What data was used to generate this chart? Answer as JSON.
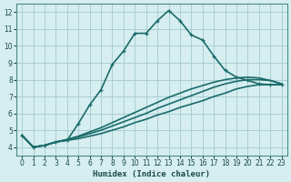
{
  "xlabel": "Humidex (Indice chaleur)",
  "ylabel": "",
  "xlim": [
    -0.5,
    23.5
  ],
  "ylim": [
    3.5,
    12.5
  ],
  "xticks": [
    0,
    1,
    2,
    3,
    4,
    5,
    6,
    7,
    8,
    9,
    10,
    11,
    12,
    13,
    14,
    15,
    16,
    17,
    18,
    19,
    20,
    21,
    22,
    23
  ],
  "yticks": [
    4,
    5,
    6,
    7,
    8,
    9,
    10,
    11,
    12
  ],
  "background_color": "#d6eef0",
  "grid_color": "#aacfd2",
  "line_color": "#1a6b6b",
  "lines": [
    {
      "x": [
        0,
        1,
        2,
        3,
        4,
        5,
        6,
        7,
        8,
        9,
        10,
        11,
        12,
        13,
        14,
        15,
        16,
        17,
        18,
        19,
        20,
        21,
        22,
        23
      ],
      "y": [
        4.7,
        4.0,
        4.1,
        4.3,
        4.4,
        5.4,
        6.5,
        7.4,
        8.9,
        9.7,
        10.75,
        10.75,
        11.5,
        12.1,
        11.5,
        10.65,
        10.35,
        9.4,
        8.55,
        8.15,
        7.95,
        7.75,
        7.7,
        7.7
      ],
      "marker": "+",
      "lw": 1.2
    },
    {
      "x": [
        0,
        1,
        2,
        3,
        4,
        5,
        6,
        7,
        8,
        9,
        10,
        11,
        12,
        13,
        14,
        15,
        16,
        17,
        18,
        19,
        20,
        21,
        22,
        23
      ],
      "y": [
        4.7,
        4.0,
        4.1,
        4.3,
        4.4,
        4.5,
        4.65,
        4.8,
        5.0,
        5.2,
        5.45,
        5.65,
        5.9,
        6.1,
        6.35,
        6.55,
        6.75,
        7.0,
        7.2,
        7.45,
        7.6,
        7.7,
        7.7,
        7.7
      ],
      "marker": null,
      "lw": 1.2
    },
    {
      "x": [
        0,
        1,
        2,
        3,
        4,
        5,
        6,
        7,
        8,
        9,
        10,
        11,
        12,
        13,
        14,
        15,
        16,
        17,
        18,
        19,
        20,
        21,
        22,
        23
      ],
      "y": [
        4.7,
        4.0,
        4.1,
        4.3,
        4.45,
        4.6,
        4.8,
        5.0,
        5.25,
        5.5,
        5.75,
        6.0,
        6.3,
        6.55,
        6.8,
        7.05,
        7.3,
        7.55,
        7.75,
        7.9,
        8.0,
        8.0,
        7.95,
        7.75
      ],
      "marker": null,
      "lw": 1.2
    },
    {
      "x": [
        0,
        1,
        2,
        3,
        4,
        5,
        6,
        7,
        8,
        9,
        10,
        11,
        12,
        13,
        14,
        15,
        16,
        17,
        18,
        19,
        20,
        21,
        22,
        23
      ],
      "y": [
        4.7,
        4.0,
        4.1,
        4.3,
        4.45,
        4.65,
        4.9,
        5.15,
        5.45,
        5.75,
        6.05,
        6.35,
        6.65,
        6.95,
        7.2,
        7.45,
        7.65,
        7.85,
        8.0,
        8.1,
        8.15,
        8.1,
        7.95,
        7.75
      ],
      "marker": null,
      "lw": 1.2
    }
  ]
}
